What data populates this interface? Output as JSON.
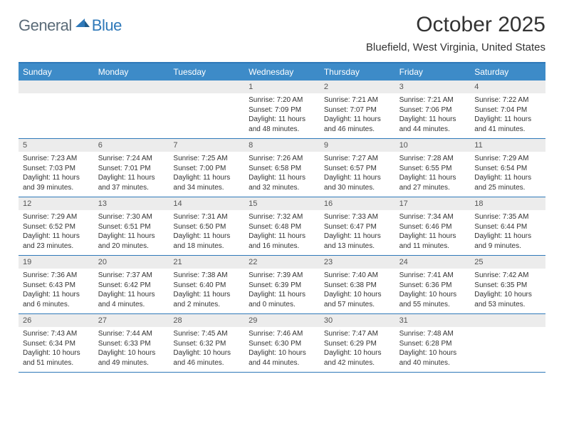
{
  "logo": {
    "general": "General",
    "blue": "Blue"
  },
  "title": "October 2025",
  "location": "Bluefield, West Virginia, United States",
  "colors": {
    "header_bg": "#3d8bc8",
    "header_border": "#2f79b9",
    "daynum_bg": "#ececec",
    "text": "#333333",
    "logo_gray": "#5a6b78",
    "logo_blue": "#2f79b9"
  },
  "day_labels": [
    "Sunday",
    "Monday",
    "Tuesday",
    "Wednesday",
    "Thursday",
    "Friday",
    "Saturday"
  ],
  "weeks": [
    [
      {
        "n": "",
        "sunrise": "",
        "sunset": "",
        "daylight": ""
      },
      {
        "n": "",
        "sunrise": "",
        "sunset": "",
        "daylight": ""
      },
      {
        "n": "",
        "sunrise": "",
        "sunset": "",
        "daylight": ""
      },
      {
        "n": "1",
        "sunrise": "Sunrise: 7:20 AM",
        "sunset": "Sunset: 7:09 PM",
        "daylight": "Daylight: 11 hours and 48 minutes."
      },
      {
        "n": "2",
        "sunrise": "Sunrise: 7:21 AM",
        "sunset": "Sunset: 7:07 PM",
        "daylight": "Daylight: 11 hours and 46 minutes."
      },
      {
        "n": "3",
        "sunrise": "Sunrise: 7:21 AM",
        "sunset": "Sunset: 7:06 PM",
        "daylight": "Daylight: 11 hours and 44 minutes."
      },
      {
        "n": "4",
        "sunrise": "Sunrise: 7:22 AM",
        "sunset": "Sunset: 7:04 PM",
        "daylight": "Daylight: 11 hours and 41 minutes."
      }
    ],
    [
      {
        "n": "5",
        "sunrise": "Sunrise: 7:23 AM",
        "sunset": "Sunset: 7:03 PM",
        "daylight": "Daylight: 11 hours and 39 minutes."
      },
      {
        "n": "6",
        "sunrise": "Sunrise: 7:24 AM",
        "sunset": "Sunset: 7:01 PM",
        "daylight": "Daylight: 11 hours and 37 minutes."
      },
      {
        "n": "7",
        "sunrise": "Sunrise: 7:25 AM",
        "sunset": "Sunset: 7:00 PM",
        "daylight": "Daylight: 11 hours and 34 minutes."
      },
      {
        "n": "8",
        "sunrise": "Sunrise: 7:26 AM",
        "sunset": "Sunset: 6:58 PM",
        "daylight": "Daylight: 11 hours and 32 minutes."
      },
      {
        "n": "9",
        "sunrise": "Sunrise: 7:27 AM",
        "sunset": "Sunset: 6:57 PM",
        "daylight": "Daylight: 11 hours and 30 minutes."
      },
      {
        "n": "10",
        "sunrise": "Sunrise: 7:28 AM",
        "sunset": "Sunset: 6:55 PM",
        "daylight": "Daylight: 11 hours and 27 minutes."
      },
      {
        "n": "11",
        "sunrise": "Sunrise: 7:29 AM",
        "sunset": "Sunset: 6:54 PM",
        "daylight": "Daylight: 11 hours and 25 minutes."
      }
    ],
    [
      {
        "n": "12",
        "sunrise": "Sunrise: 7:29 AM",
        "sunset": "Sunset: 6:52 PM",
        "daylight": "Daylight: 11 hours and 23 minutes."
      },
      {
        "n": "13",
        "sunrise": "Sunrise: 7:30 AM",
        "sunset": "Sunset: 6:51 PM",
        "daylight": "Daylight: 11 hours and 20 minutes."
      },
      {
        "n": "14",
        "sunrise": "Sunrise: 7:31 AM",
        "sunset": "Sunset: 6:50 PM",
        "daylight": "Daylight: 11 hours and 18 minutes."
      },
      {
        "n": "15",
        "sunrise": "Sunrise: 7:32 AM",
        "sunset": "Sunset: 6:48 PM",
        "daylight": "Daylight: 11 hours and 16 minutes."
      },
      {
        "n": "16",
        "sunrise": "Sunrise: 7:33 AM",
        "sunset": "Sunset: 6:47 PM",
        "daylight": "Daylight: 11 hours and 13 minutes."
      },
      {
        "n": "17",
        "sunrise": "Sunrise: 7:34 AM",
        "sunset": "Sunset: 6:46 PM",
        "daylight": "Daylight: 11 hours and 11 minutes."
      },
      {
        "n": "18",
        "sunrise": "Sunrise: 7:35 AM",
        "sunset": "Sunset: 6:44 PM",
        "daylight": "Daylight: 11 hours and 9 minutes."
      }
    ],
    [
      {
        "n": "19",
        "sunrise": "Sunrise: 7:36 AM",
        "sunset": "Sunset: 6:43 PM",
        "daylight": "Daylight: 11 hours and 6 minutes."
      },
      {
        "n": "20",
        "sunrise": "Sunrise: 7:37 AM",
        "sunset": "Sunset: 6:42 PM",
        "daylight": "Daylight: 11 hours and 4 minutes."
      },
      {
        "n": "21",
        "sunrise": "Sunrise: 7:38 AM",
        "sunset": "Sunset: 6:40 PM",
        "daylight": "Daylight: 11 hours and 2 minutes."
      },
      {
        "n": "22",
        "sunrise": "Sunrise: 7:39 AM",
        "sunset": "Sunset: 6:39 PM",
        "daylight": "Daylight: 11 hours and 0 minutes."
      },
      {
        "n": "23",
        "sunrise": "Sunrise: 7:40 AM",
        "sunset": "Sunset: 6:38 PM",
        "daylight": "Daylight: 10 hours and 57 minutes."
      },
      {
        "n": "24",
        "sunrise": "Sunrise: 7:41 AM",
        "sunset": "Sunset: 6:36 PM",
        "daylight": "Daylight: 10 hours and 55 minutes."
      },
      {
        "n": "25",
        "sunrise": "Sunrise: 7:42 AM",
        "sunset": "Sunset: 6:35 PM",
        "daylight": "Daylight: 10 hours and 53 minutes."
      }
    ],
    [
      {
        "n": "26",
        "sunrise": "Sunrise: 7:43 AM",
        "sunset": "Sunset: 6:34 PM",
        "daylight": "Daylight: 10 hours and 51 minutes."
      },
      {
        "n": "27",
        "sunrise": "Sunrise: 7:44 AM",
        "sunset": "Sunset: 6:33 PM",
        "daylight": "Daylight: 10 hours and 49 minutes."
      },
      {
        "n": "28",
        "sunrise": "Sunrise: 7:45 AM",
        "sunset": "Sunset: 6:32 PM",
        "daylight": "Daylight: 10 hours and 46 minutes."
      },
      {
        "n": "29",
        "sunrise": "Sunrise: 7:46 AM",
        "sunset": "Sunset: 6:30 PM",
        "daylight": "Daylight: 10 hours and 44 minutes."
      },
      {
        "n": "30",
        "sunrise": "Sunrise: 7:47 AM",
        "sunset": "Sunset: 6:29 PM",
        "daylight": "Daylight: 10 hours and 42 minutes."
      },
      {
        "n": "31",
        "sunrise": "Sunrise: 7:48 AM",
        "sunset": "Sunset: 6:28 PM",
        "daylight": "Daylight: 10 hours and 40 minutes."
      },
      {
        "n": "",
        "sunrise": "",
        "sunset": "",
        "daylight": ""
      }
    ]
  ]
}
